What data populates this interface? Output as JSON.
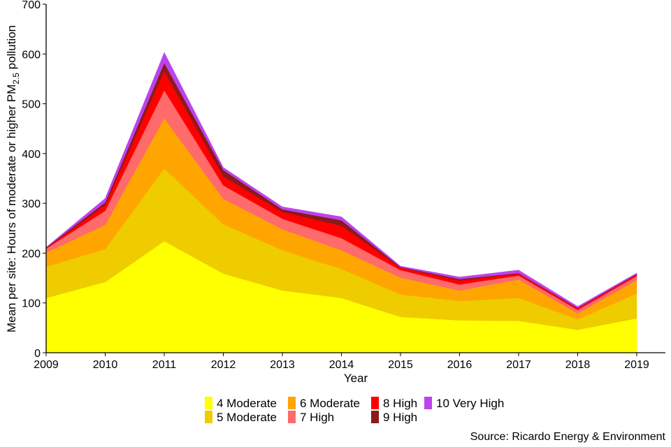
{
  "chart_data": {
    "type": "area",
    "stacked": true,
    "title": "",
    "xlabel": "Year",
    "ylabel_parts": [
      "Mean per site: Hours of moderate or higher PM",
      "2.5",
      " pollution"
    ],
    "x": [
      2009,
      2010,
      2011,
      2012,
      2013,
      2014,
      2015,
      2016,
      2017,
      2018,
      2019
    ],
    "xticks": [
      "2009",
      "2010",
      "2011",
      "2012",
      "2013",
      "2014",
      "2015",
      "2016",
      "2017",
      "2018",
      "2019"
    ],
    "ylim": [
      0,
      700
    ],
    "yticks": [
      "0",
      "100",
      "200",
      "300",
      "400",
      "500",
      "600",
      "700"
    ],
    "grid": false,
    "legend_placement": "bottom",
    "series": [
      {
        "name": "4 Moderate",
        "color": "#FFFF00",
        "values": [
          110,
          142,
          224,
          159,
          125,
          110,
          72,
          65,
          64,
          46,
          69
        ]
      },
      {
        "name": "5 Moderate",
        "color": "#EECC00",
        "values": [
          63,
          66,
          146,
          99,
          81,
          58,
          45,
          39,
          46,
          21,
          50
        ]
      },
      {
        "name": "6 Moderate",
        "color": "#FFA500",
        "values": [
          28,
          49,
          101,
          51,
          42,
          38,
          34,
          21,
          37,
          12,
          27
        ]
      },
      {
        "name": "7 High",
        "color": "#FF6A6A",
        "values": [
          8,
          28,
          56,
          27,
          21,
          24,
          15,
          12,
          8,
          7,
          8
        ]
      },
      {
        "name": "8 High",
        "color": "#FF0000",
        "values": [
          1,
          12,
          39,
          18,
          14,
          25,
          5,
          8,
          4,
          3,
          3
        ]
      },
      {
        "name": "9 High",
        "color": "#8B1A1A",
        "values": [
          1,
          5,
          16,
          13,
          5,
          11,
          1,
          3,
          1,
          1,
          1
        ]
      },
      {
        "name": "10 Very High",
        "color": "#BB44EE",
        "values": [
          1,
          8,
          21,
          5,
          5,
          7,
          2,
          4,
          6,
          3,
          2
        ]
      }
    ],
    "source": "Source: Ricardo Energy & Environment"
  }
}
